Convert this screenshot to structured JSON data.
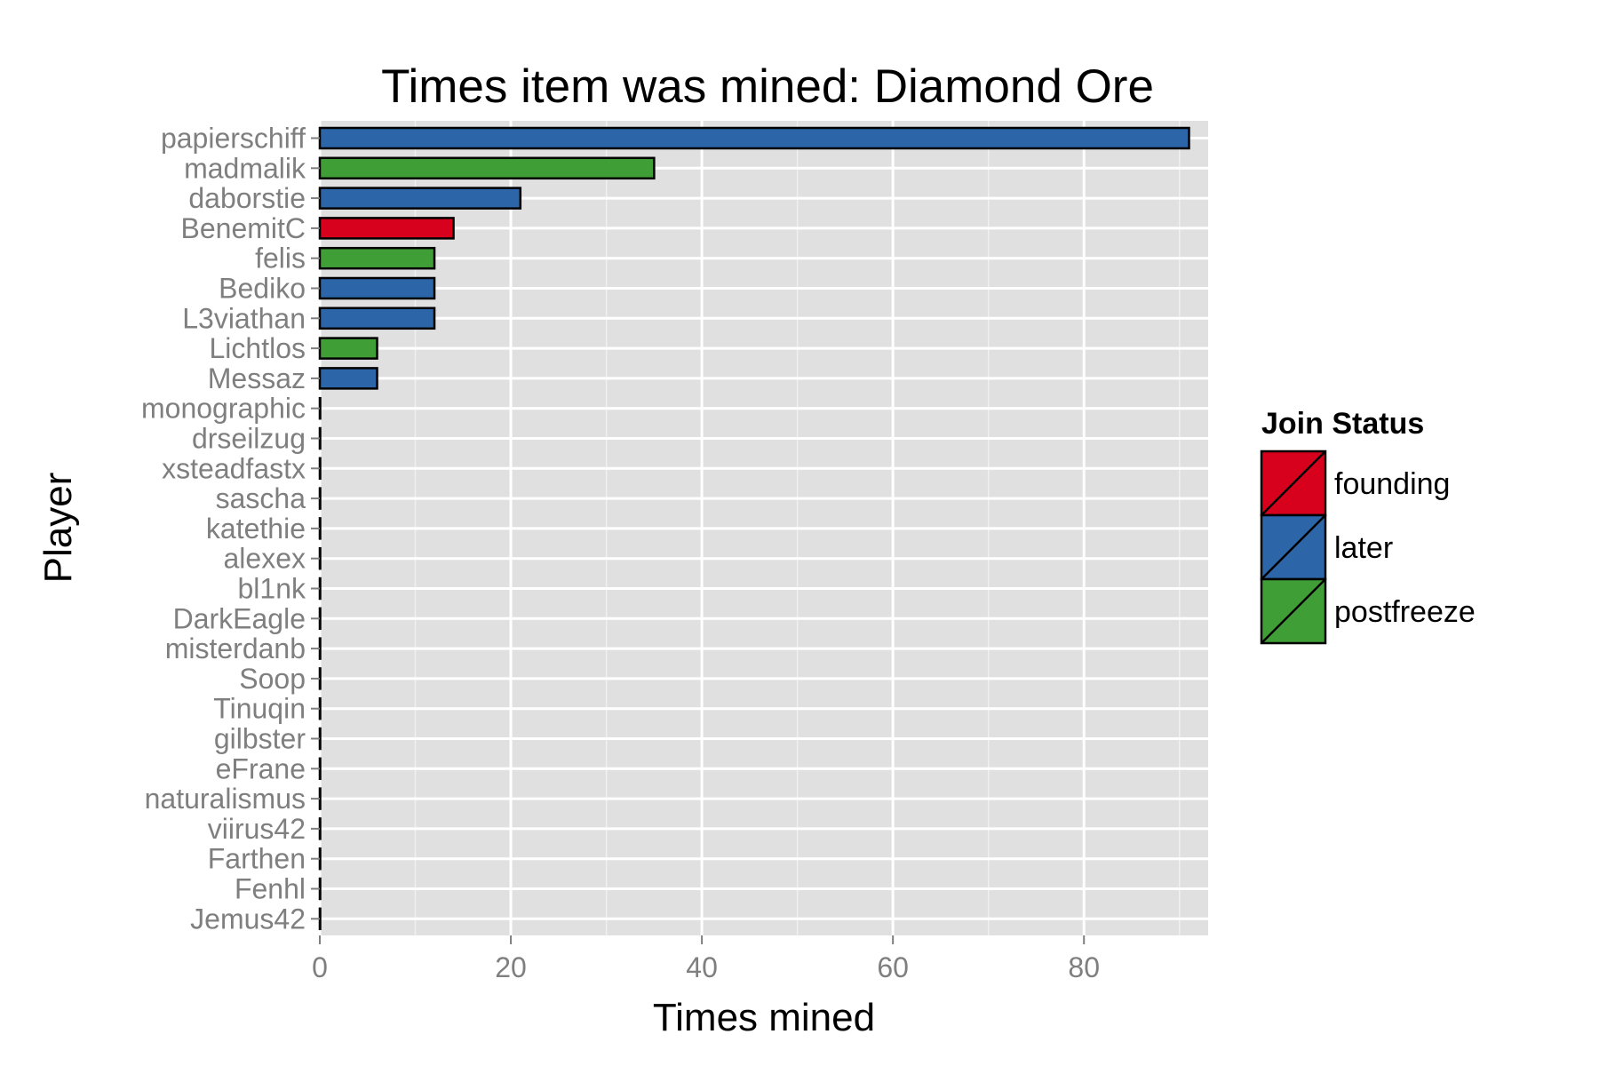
{
  "chart_data": {
    "type": "bar",
    "orientation": "horizontal",
    "title": "Times item was mined: Diamond Ore",
    "xlabel": "Times mined",
    "ylabel": "Player",
    "xlim": [
      0,
      93
    ],
    "xticks": [
      0,
      20,
      40,
      60,
      80
    ],
    "grid": true,
    "legend": {
      "title": "Join Status",
      "placement": "right",
      "entries": [
        {
          "key": "founding",
          "label": "founding",
          "color": "#d7001d"
        },
        {
          "key": "later",
          "label": "later",
          "color": "#2c66a8"
        },
        {
          "key": "postfreeze",
          "label": "postfreeze",
          "color": "#3f9e36"
        }
      ]
    },
    "bars": [
      {
        "player": "papierschiff",
        "value": 91,
        "status": "later"
      },
      {
        "player": "madmalik",
        "value": 35,
        "status": "postfreeze"
      },
      {
        "player": "daborstie",
        "value": 21,
        "status": "later"
      },
      {
        "player": "BenemitC",
        "value": 14,
        "status": "founding"
      },
      {
        "player": "felis",
        "value": 12,
        "status": "postfreeze"
      },
      {
        "player": "Bediko",
        "value": 12,
        "status": "later"
      },
      {
        "player": "L3viathan",
        "value": 12,
        "status": "later"
      },
      {
        "player": "Lichtlos",
        "value": 6,
        "status": "postfreeze"
      },
      {
        "player": "Messaz",
        "value": 6,
        "status": "later"
      },
      {
        "player": "monographic",
        "value": 0,
        "status": "later"
      },
      {
        "player": "drseilzug",
        "value": 0,
        "status": "later"
      },
      {
        "player": "xsteadfastx",
        "value": 0,
        "status": "later"
      },
      {
        "player": "sascha",
        "value": 0,
        "status": "later"
      },
      {
        "player": "katethie",
        "value": 0,
        "status": "later"
      },
      {
        "player": "alexex",
        "value": 0,
        "status": "later"
      },
      {
        "player": "bl1nk",
        "value": 0,
        "status": "later"
      },
      {
        "player": "DarkEagle",
        "value": 0,
        "status": "later"
      },
      {
        "player": "misterdanb",
        "value": 0,
        "status": "later"
      },
      {
        "player": "Soop",
        "value": 0,
        "status": "later"
      },
      {
        "player": "Tinuqin",
        "value": 0,
        "status": "later"
      },
      {
        "player": "gilbster",
        "value": 0,
        "status": "later"
      },
      {
        "player": "eFrane",
        "value": 0,
        "status": "later"
      },
      {
        "player": "naturalismus",
        "value": 0,
        "status": "later"
      },
      {
        "player": "viirus42",
        "value": 0,
        "status": "later"
      },
      {
        "player": "Farthen",
        "value": 0,
        "status": "later"
      },
      {
        "player": "Fenhl",
        "value": 0,
        "status": "later"
      },
      {
        "player": "Jemus42",
        "value": 0,
        "status": "later"
      }
    ]
  }
}
